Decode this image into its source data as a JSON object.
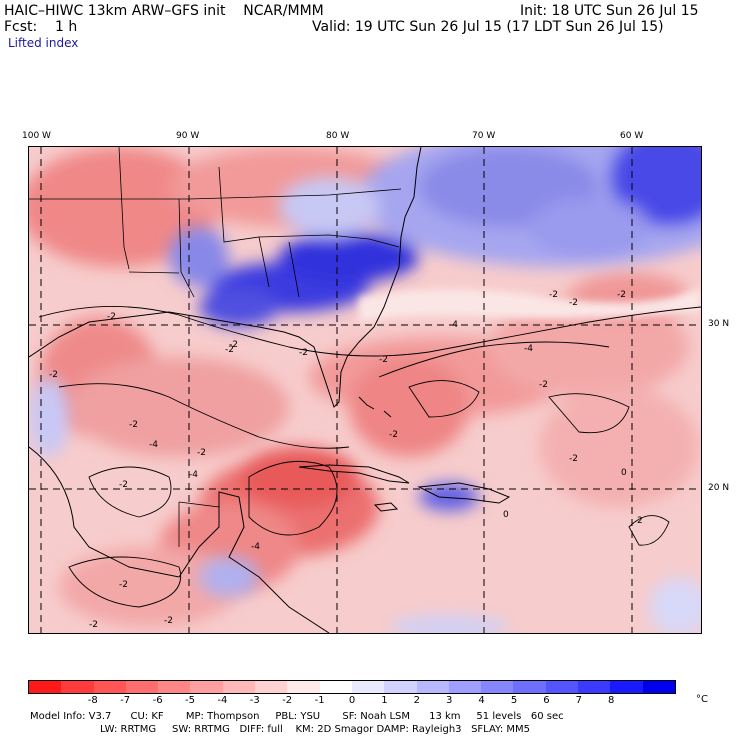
{
  "header": {
    "title": "HAIC–HIWC 13km ARW–GFS init    NCAR/MMM",
    "init": "Init: 18 UTC Sun 26 Jul 15",
    "fcst": "Fcst:    1 h",
    "valid": "Valid: 19 UTC Sun 26 Jul 15 (17 LDT Sun 26 Jul 15)",
    "field": "Lifted index"
  },
  "map": {
    "longitude_labels": [
      "100 W",
      "90 W",
      "80 W",
      "70 W",
      "60 W"
    ],
    "latitude_labels": [
      "30 N",
      "20 N"
    ],
    "contour_labels": [
      "-2",
      "-2",
      "-2",
      "-2",
      "-2",
      "-2",
      "-2",
      "-4",
      "-4",
      "-4",
      "-2",
      "-2",
      "-2",
      "-2",
      "-2",
      "-2",
      "-4",
      "-4",
      "-2",
      "-2",
      "-2",
      "-2",
      "0",
      "0",
      "2",
      "-2"
    ]
  },
  "colorbar": {
    "tick_labels": [
      "-8",
      "-7",
      "-6",
      "-5",
      "-4",
      "-3",
      "-2",
      "-1",
      "0",
      "1",
      "2",
      "3",
      "4",
      "5",
      "6",
      "7",
      "8"
    ],
    "unit": "°C",
    "colors": [
      "#ff1a1a",
      "#ff3b3b",
      "#ff5555",
      "#ff6e6e",
      "#ff8686",
      "#ff9f9f",
      "#ffb8b8",
      "#ffd2d2",
      "#ffeaea",
      "#ffffff",
      "#eaeaff",
      "#d2d2ff",
      "#b8b8ff",
      "#9f9fff",
      "#8686ff",
      "#6e6eff",
      "#5555ff",
      "#3b3bff",
      "#1a1aff",
      "#0000ee"
    ]
  },
  "model_info": {
    "line1": "Model Info: V3.7      CU: KF       MP: Thompson     PBL: YSU       SF: Noah LSM      13 km     51 levels   60 sec",
    "line2": "LW: RRTMG     SW: RRTMG   DIFF: full    KM: 2D Smagor DAMP: Rayleigh3   SFLAY: MM5"
  }
}
